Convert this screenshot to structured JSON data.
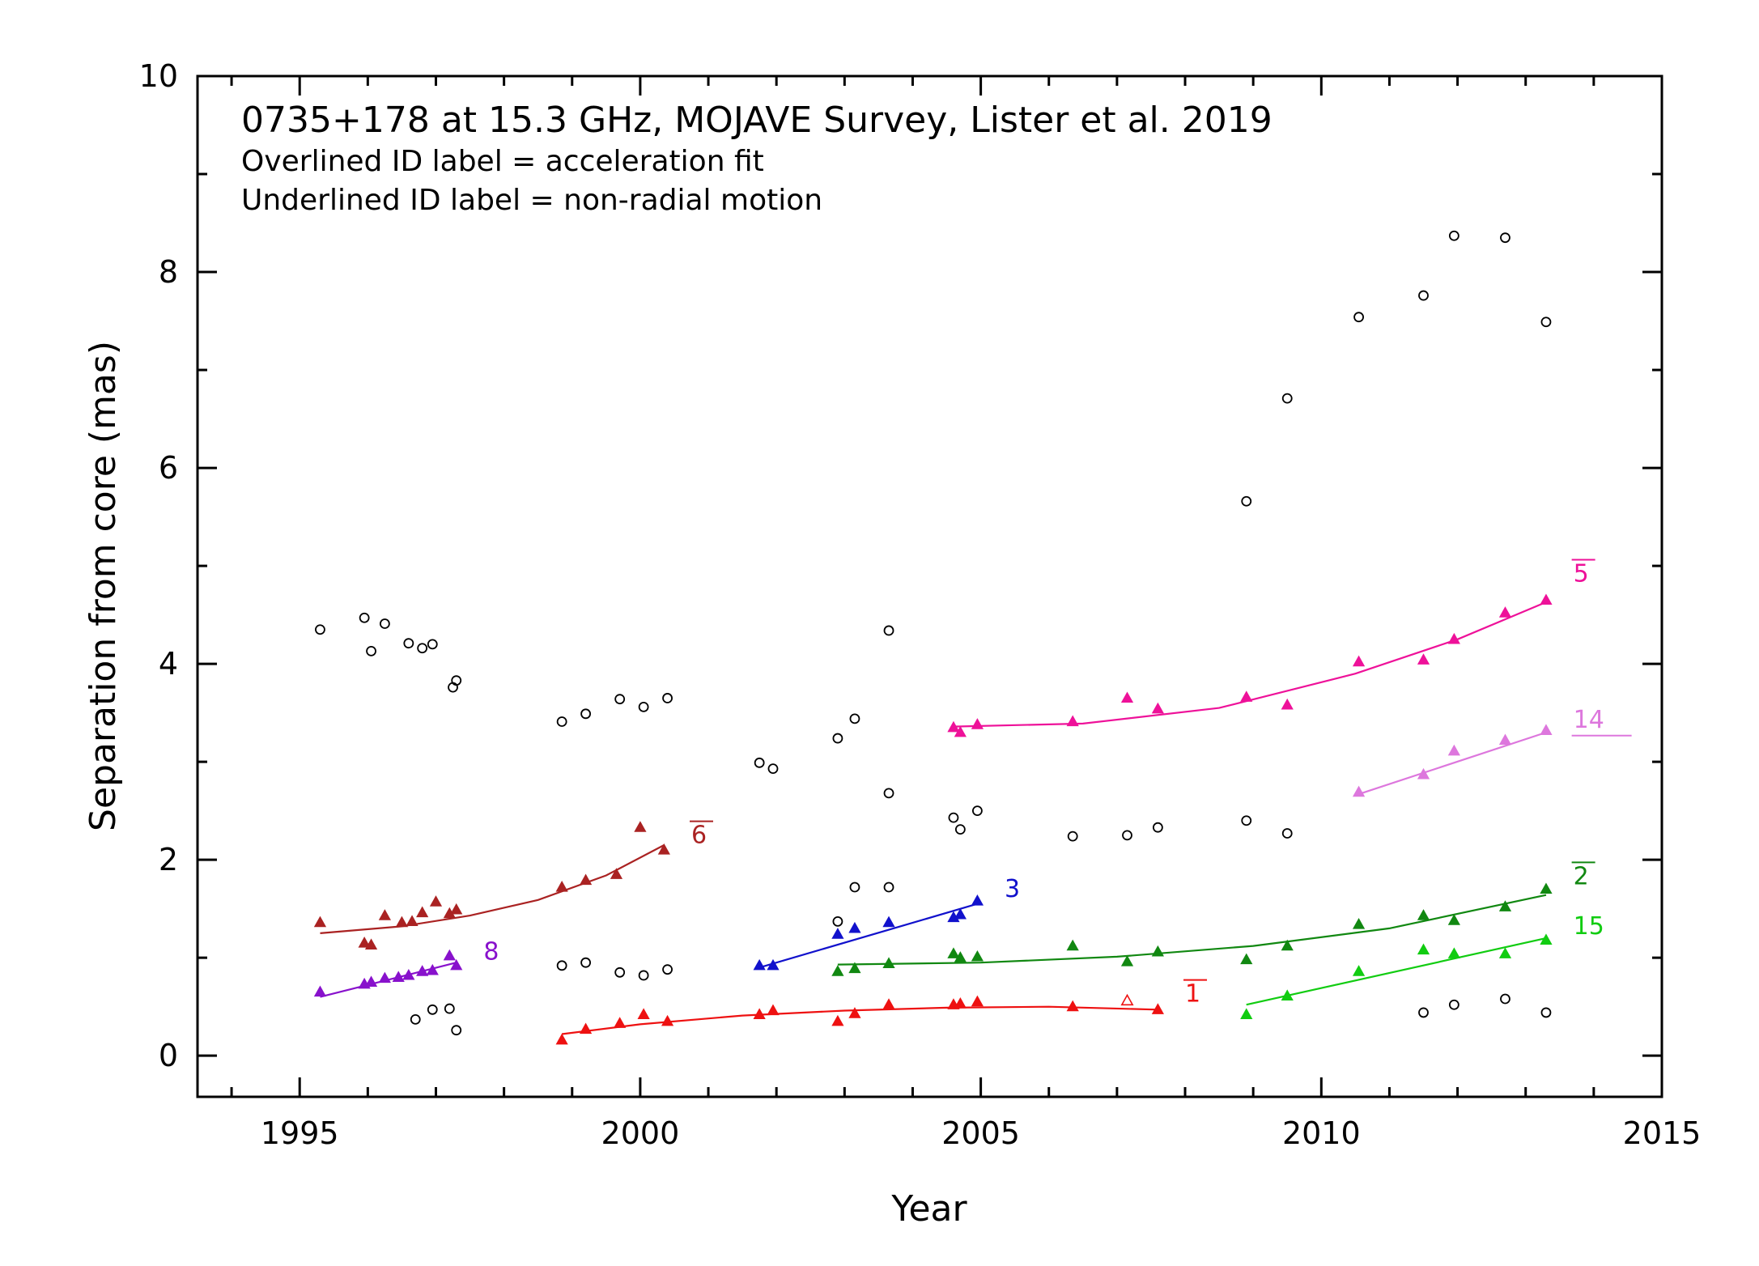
{
  "chart_data": {
    "type": "scatter",
    "title": "0735+178 at 15.3 GHz, MOJAVE Survey, Lister et al. 2019",
    "notes": [
      "Overlined ID label = acceleration fit",
      "Underlined ID label = non-radial motion"
    ],
    "xlabel": "Year",
    "ylabel": "Separation from core (mas)",
    "xlim": [
      1993.5,
      2015
    ],
    "ylim": [
      -0.42,
      10
    ],
    "xticks": [
      1995,
      2000,
      2005,
      2010,
      2015
    ],
    "yticks": [
      0,
      2,
      4,
      6,
      8,
      10
    ],
    "grid": false,
    "legend": "none",
    "series": [
      {
        "id": "unassigned",
        "marker": "open-circle",
        "color": "#000000",
        "points": [
          [
            1995.3,
            4.35
          ],
          [
            1995.95,
            4.47
          ],
          [
            1996.05,
            4.13
          ],
          [
            1996.25,
            4.41
          ],
          [
            1996.6,
            4.21
          ],
          [
            1996.8,
            4.16
          ],
          [
            1996.95,
            4.2
          ],
          [
            1997.25,
            3.76
          ],
          [
            1997.3,
            3.83
          ],
          [
            1998.85,
            3.41
          ],
          [
            1999.2,
            3.49
          ],
          [
            1999.7,
            3.64
          ],
          [
            2000.05,
            3.56
          ],
          [
            2000.4,
            3.65
          ],
          [
            2001.75,
            2.99
          ],
          [
            2001.95,
            2.93
          ],
          [
            2002.9,
            3.24
          ],
          [
            2003.15,
            3.44
          ],
          [
            2003.65,
            4.34
          ],
          [
            2003.65,
            2.68
          ],
          [
            2004.6,
            2.43
          ],
          [
            2004.7,
            2.31
          ],
          [
            2004.95,
            2.5
          ],
          [
            2006.35,
            2.24
          ],
          [
            2007.15,
            2.25
          ],
          [
            2007.6,
            2.33
          ],
          [
            2008.9,
            5.66
          ],
          [
            2009.5,
            6.71
          ],
          [
            2010.55,
            7.54
          ],
          [
            2011.5,
            7.76
          ],
          [
            2011.95,
            8.37
          ],
          [
            2012.7,
            8.35
          ],
          [
            2013.3,
            7.49
          ],
          [
            2008.9,
            2.4
          ],
          [
            2009.5,
            2.27
          ],
          [
            2002.9,
            1.37
          ],
          [
            2003.15,
            1.72
          ],
          [
            2003.65,
            1.72
          ],
          [
            1998.85,
            0.92
          ],
          [
            1999.2,
            0.95
          ],
          [
            1999.7,
            0.85
          ],
          [
            2000.05,
            0.82
          ],
          [
            2000.4,
            0.88
          ],
          [
            1996.7,
            0.37
          ],
          [
            1996.95,
            0.47
          ],
          [
            1997.2,
            0.48
          ],
          [
            1997.3,
            0.26
          ],
          [
            2011.5,
            0.44
          ],
          [
            2011.95,
            0.52
          ],
          [
            2012.7,
            0.58
          ],
          [
            2013.3,
            0.44
          ]
        ]
      },
      {
        "id": "1",
        "label": "1",
        "overline": true,
        "color": "#ee1111",
        "marker": "filled-triangle",
        "points": [
          [
            1998.85,
            0.16
          ],
          [
            1999.2,
            0.27
          ],
          [
            1999.7,
            0.33
          ],
          [
            2000.05,
            0.42
          ],
          [
            2000.4,
            0.35
          ],
          [
            2001.75,
            0.42
          ],
          [
            2001.95,
            0.46
          ],
          [
            2002.9,
            0.35
          ],
          [
            2003.15,
            0.43
          ],
          [
            2003.65,
            0.52
          ],
          [
            2004.6,
            0.52
          ],
          [
            2004.7,
            0.53
          ],
          [
            2004.95,
            0.55
          ],
          [
            2006.35,
            0.5
          ],
          [
            2007.6,
            0.47
          ]
        ],
        "open_points": [
          [
            2007.15,
            0.56
          ]
        ],
        "fit": [
          [
            1998.85,
            0.22
          ],
          [
            2000.0,
            0.32
          ],
          [
            2001.5,
            0.41
          ],
          [
            2003.0,
            0.46
          ],
          [
            2004.5,
            0.49
          ],
          [
            2006.0,
            0.5
          ],
          [
            2007.6,
            0.47
          ]
        ],
        "label_at": [
          2008.0,
          0.55
        ]
      },
      {
        "id": "2",
        "label": "2",
        "overline": true,
        "color": "#118811",
        "marker": "filled-triangle",
        "points": [
          [
            2002.9,
            0.86
          ],
          [
            2003.15,
            0.89
          ],
          [
            2003.65,
            0.94
          ],
          [
            2004.6,
            1.04
          ],
          [
            2004.7,
            1.0
          ],
          [
            2004.95,
            1.01
          ],
          [
            2006.35,
            1.12
          ],
          [
            2007.15,
            0.96
          ],
          [
            2007.6,
            1.06
          ],
          [
            2008.9,
            0.98
          ],
          [
            2009.5,
            1.12
          ],
          [
            2010.55,
            1.34
          ],
          [
            2011.5,
            1.43
          ],
          [
            2011.95,
            1.38
          ],
          [
            2012.7,
            1.52
          ],
          [
            2013.3,
            1.7
          ]
        ],
        "fit": [
          [
            2002.9,
            0.93
          ],
          [
            2005.0,
            0.95
          ],
          [
            2007.0,
            1.01
          ],
          [
            2009.0,
            1.12
          ],
          [
            2011.0,
            1.3
          ],
          [
            2013.3,
            1.64
          ]
        ],
        "label_at": [
          2013.7,
          1.75
        ]
      },
      {
        "id": "3",
        "label": "3",
        "overline": false,
        "color": "#1111cc",
        "marker": "filled-triangle",
        "points": [
          [
            2001.75,
            0.92
          ],
          [
            2001.95,
            0.92
          ],
          [
            2002.9,
            1.24
          ],
          [
            2003.15,
            1.3
          ],
          [
            2003.65,
            1.36
          ],
          [
            2004.6,
            1.41
          ],
          [
            2004.7,
            1.44
          ],
          [
            2004.95,
            1.58
          ]
        ],
        "fit": [
          [
            2001.75,
            0.9
          ],
          [
            2004.95,
            1.55
          ]
        ],
        "label_at": [
          2005.35,
          1.62
        ]
      },
      {
        "id": "5",
        "label": "5",
        "overline": true,
        "color": "#ee1199",
        "marker": "filled-triangle",
        "points": [
          [
            2004.6,
            3.35
          ],
          [
            2004.7,
            3.3
          ],
          [
            2004.95,
            3.38
          ],
          [
            2006.35,
            3.41
          ],
          [
            2007.15,
            3.65
          ],
          [
            2007.6,
            3.54
          ],
          [
            2008.9,
            3.66
          ],
          [
            2009.5,
            3.58
          ],
          [
            2010.55,
            4.02
          ],
          [
            2011.5,
            4.04
          ],
          [
            2011.95,
            4.25
          ],
          [
            2012.7,
            4.52
          ],
          [
            2013.3,
            4.65
          ]
        ],
        "fit": [
          [
            2004.6,
            3.36
          ],
          [
            2006.5,
            3.39
          ],
          [
            2008.5,
            3.55
          ],
          [
            2010.5,
            3.9
          ],
          [
            2012.0,
            4.25
          ],
          [
            2013.3,
            4.63
          ]
        ],
        "label_at": [
          2013.7,
          4.84
        ]
      },
      {
        "id": "6",
        "label": "6",
        "overline": true,
        "color": "#aa2222",
        "marker": "filled-triangle",
        "points": [
          [
            1995.3,
            1.36
          ],
          [
            1995.95,
            1.15
          ],
          [
            1996.05,
            1.13
          ],
          [
            1996.25,
            1.43
          ],
          [
            1996.5,
            1.36
          ],
          [
            1996.65,
            1.37
          ],
          [
            1996.8,
            1.46
          ],
          [
            1997.0,
            1.57
          ],
          [
            1997.2,
            1.45
          ],
          [
            1997.3,
            1.49
          ],
          [
            1998.85,
            1.72
          ],
          [
            1999.2,
            1.79
          ],
          [
            1999.65,
            1.85
          ],
          [
            2000.0,
            2.33
          ],
          [
            2000.35,
            2.1
          ]
        ],
        "fit": [
          [
            1995.3,
            1.25
          ],
          [
            1996.5,
            1.32
          ],
          [
            1997.5,
            1.43
          ],
          [
            1998.5,
            1.59
          ],
          [
            1999.5,
            1.84
          ],
          [
            2000.35,
            2.15
          ]
        ],
        "label_at": [
          2000.75,
          2.17
        ]
      },
      {
        "id": "8",
        "label": "8",
        "overline": false,
        "color": "#8811cc",
        "marker": "filled-triangle",
        "points": [
          [
            1995.3,
            0.65
          ],
          [
            1995.95,
            0.73
          ],
          [
            1996.05,
            0.75
          ],
          [
            1996.25,
            0.79
          ],
          [
            1996.45,
            0.8
          ],
          [
            1996.6,
            0.82
          ],
          [
            1996.8,
            0.86
          ],
          [
            1996.95,
            0.87
          ],
          [
            1997.2,
            1.02
          ],
          [
            1997.3,
            0.92
          ]
        ],
        "fit": [
          [
            1995.3,
            0.6
          ],
          [
            1997.3,
            0.95
          ]
        ],
        "label_at": [
          1997.7,
          0.98
        ]
      },
      {
        "id": "14",
        "label": "14",
        "overline": false,
        "underline": true,
        "color": "#dd77dd",
        "marker": "filled-triangle",
        "points": [
          [
            2010.55,
            2.69
          ],
          [
            2011.5,
            2.87
          ],
          [
            2011.95,
            3.11
          ],
          [
            2012.7,
            3.22
          ],
          [
            2013.3,
            3.32
          ]
        ],
        "fit": [
          [
            2010.55,
            2.67
          ],
          [
            2013.3,
            3.3
          ]
        ],
        "label_at": [
          2013.7,
          3.35
        ]
      },
      {
        "id": "15",
        "label": "15",
        "overline": false,
        "color": "#11cc11",
        "marker": "filled-triangle",
        "points": [
          [
            2008.9,
            0.42
          ],
          [
            2009.5,
            0.61
          ],
          [
            2010.55,
            0.86
          ],
          [
            2011.5,
            1.08
          ],
          [
            2011.95,
            1.04
          ],
          [
            2012.7,
            1.04
          ],
          [
            2013.3,
            1.18
          ]
        ],
        "fit": [
          [
            2008.9,
            0.52
          ],
          [
            2013.3,
            1.2
          ]
        ],
        "label_at": [
          2013.7,
          1.24
        ]
      }
    ]
  }
}
